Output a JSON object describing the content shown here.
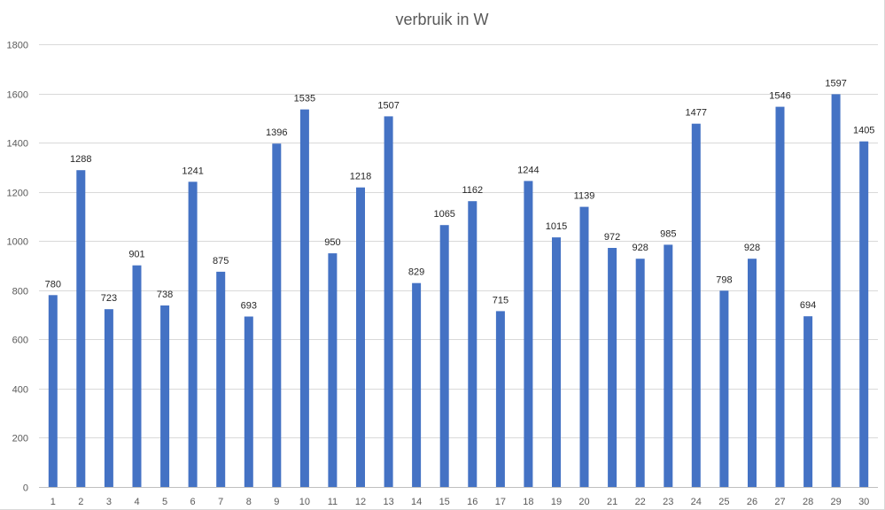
{
  "chart_data": {
    "type": "bar",
    "title": "verbruik in W",
    "xlabel": "",
    "ylabel": "",
    "ylim": [
      0,
      1800
    ],
    "yticks": [
      0,
      200,
      400,
      600,
      800,
      1000,
      1200,
      1400,
      1600,
      1800
    ],
    "grid": true,
    "legend": "none",
    "categories": [
      "1",
      "2",
      "3",
      "4",
      "5",
      "6",
      "7",
      "8",
      "9",
      "10",
      "11",
      "12",
      "13",
      "14",
      "15",
      "16",
      "17",
      "18",
      "19",
      "20",
      "21",
      "22",
      "23",
      "24",
      "25",
      "26",
      "27",
      "28",
      "29",
      "30"
    ],
    "values": [
      780,
      1288,
      723,
      901,
      738,
      1241,
      875,
      693,
      1396,
      1535,
      950,
      1218,
      1507,
      829,
      1065,
      1162,
      715,
      1244,
      1015,
      1139,
      972,
      928,
      985,
      1477,
      798,
      928,
      1546,
      694,
      1597,
      1405
    ],
    "data_labels": true,
    "colors": {
      "bar": "#4472c4"
    }
  }
}
